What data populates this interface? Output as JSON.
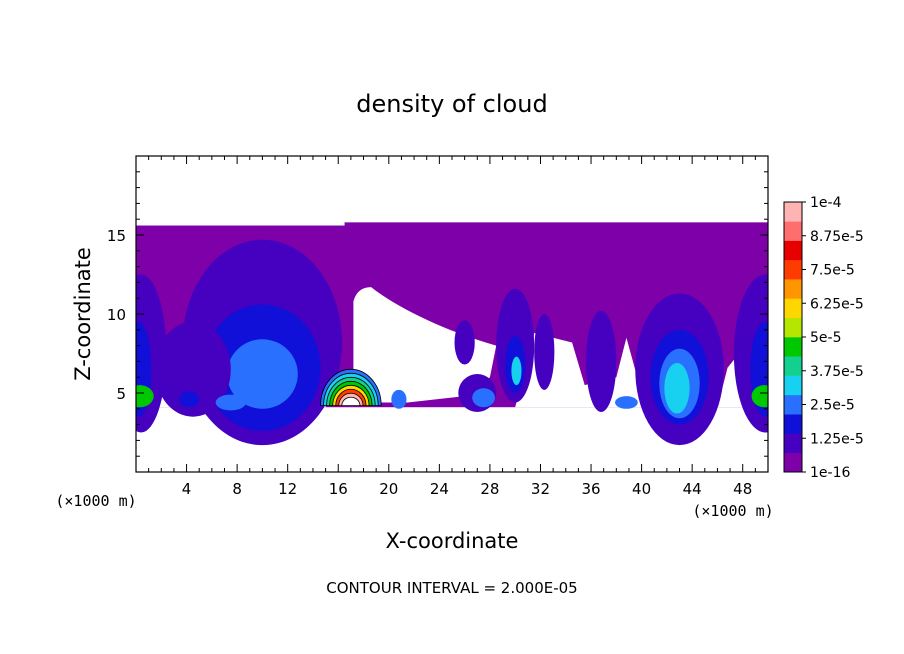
{
  "chart_data": {
    "type": "heatmap",
    "title": "density of cloud",
    "xlabel": "X-coordinate",
    "ylabel": "Z-coordinate",
    "x_unit": "(×1000 m)",
    "y_unit": "(×1000 m)",
    "xlim": [
      0,
      50
    ],
    "ylim": [
      0,
      20
    ],
    "x_ticks": [
      "4",
      "8",
      "12",
      "16",
      "20",
      "24",
      "28",
      "32",
      "36",
      "40",
      "44",
      "48"
    ],
    "y_ticks": [
      "5",
      "10",
      "15"
    ],
    "x_tick_values": [
      4,
      8,
      12,
      16,
      20,
      24,
      28,
      32,
      36,
      40,
      44,
      48
    ],
    "y_tick_values": [
      5,
      10,
      15
    ],
    "footer": "CONTOUR INTERVAL = 2.000E-05",
    "colorbar": {
      "labels": [
        "1e-4",
        "8.75e-5",
        "7.5e-5",
        "6.25e-5",
        "5e-5",
        "3.75e-5",
        "2.5e-5",
        "1.25e-5",
        "1e-16"
      ],
      "label_values": [
        0.0001,
        8.75e-05,
        7.5e-05,
        6.25e-05,
        5e-05,
        3.75e-05,
        2.5e-05,
        1.25e-05,
        1e-16
      ],
      "min": 1e-16,
      "max": 0.0001,
      "colors": [
        "#7d00a8",
        "#4500c0",
        "#1010d8",
        "#2a70ff",
        "#18d0f0",
        "#14d090",
        "#00c800",
        "#b4e600",
        "#ffd700",
        "#ff9600",
        "#ff3c00",
        "#e60000",
        "#ff6e6e",
        "#ffb4b4"
      ]
    },
    "colors": {
      "level0": "#7d00a8",
      "level1": "#4500c0",
      "level2": "#1010d8",
      "level3": "#2a70ff",
      "level4": "#18d0f0",
      "level5": "#14d090",
      "level6": "#00c800",
      "level7": "#ffd700",
      "level8": "#ff3c00",
      "level9": "#ffb4b4"
    }
  }
}
